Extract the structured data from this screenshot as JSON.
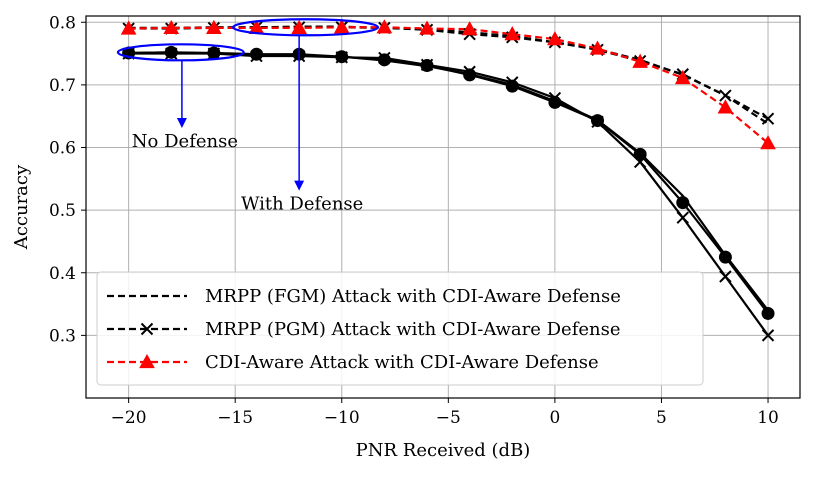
{
  "chart_data": {
    "type": "line",
    "title": "",
    "xlabel": "PNR Received (dB)",
    "ylabel": "Accuracy",
    "xlim": [
      -22,
      11.5
    ],
    "ylim": [
      0.2,
      0.81
    ],
    "xticks": [
      -20,
      -15,
      -10,
      -5,
      0,
      5,
      10
    ],
    "xtick_labels": [
      "−20",
      "−15",
      "−10",
      "−5",
      "0",
      "5",
      "10"
    ],
    "yticks": [
      0.3,
      0.4,
      0.5,
      0.6,
      0.7,
      0.8
    ],
    "ytick_labels": [
      "0.3",
      "0.4",
      "0.5",
      "0.6",
      "0.7",
      "0.8"
    ],
    "grid": true,
    "legend_position": "lower-left",
    "x": [
      -20,
      -18,
      -16,
      -14,
      -12,
      -10,
      -8,
      -6,
      -4,
      -2,
      0,
      2,
      4,
      6,
      8,
      10
    ],
    "series": [
      {
        "name": "MRPP (FGM) Attack with CDI-Aware Defense",
        "color": "#000000",
        "dashed": true,
        "marker": "none",
        "values": [
          0.791,
          0.791,
          0.792,
          0.792,
          0.793,
          0.793,
          0.791,
          0.789,
          0.784,
          0.778,
          0.768,
          0.757,
          0.74,
          0.716,
          0.683,
          0.638
        ]
      },
      {
        "name": "MRPP (PGM) Attack with CDI-Aware Defense",
        "color": "#000000",
        "dashed": true,
        "marker": "x",
        "values": [
          0.79,
          0.79,
          0.791,
          0.792,
          0.792,
          0.792,
          0.791,
          0.788,
          0.781,
          0.776,
          0.768,
          0.756,
          0.738,
          0.717,
          0.683,
          0.646
        ]
      },
      {
        "name": "CDI-Aware Attack with CDI-Aware Defense",
        "color": "#ff0000",
        "dashed": true,
        "marker": "triangle",
        "values": [
          0.79,
          0.791,
          0.791,
          0.791,
          0.791,
          0.792,
          0.792,
          0.79,
          0.789,
          0.781,
          0.773,
          0.758,
          0.737,
          0.711,
          0.664,
          0.607
        ]
      },
      {
        "name": "",
        "color": "#000000",
        "dashed": false,
        "marker": "circle",
        "values": [
          0.751,
          0.752,
          0.751,
          0.749,
          0.749,
          0.745,
          0.74,
          0.731,
          0.716,
          0.698,
          0.672,
          0.643,
          0.589,
          0.512,
          0.425,
          0.335
        ]
      },
      {
        "name": "",
        "color": "#000000",
        "dashed": false,
        "marker": "x",
        "values": [
          0.75,
          0.75,
          0.75,
          0.746,
          0.746,
          0.744,
          0.743,
          0.732,
          0.721,
          0.704,
          0.679,
          0.641,
          0.577,
          0.488,
          0.394,
          0.3
        ]
      },
      {
        "name": "",
        "color": "#000000",
        "dashed": false,
        "marker": "none",
        "values": [
          0.751,
          0.752,
          0.75,
          0.748,
          0.748,
          0.745,
          0.739,
          0.73,
          0.717,
          0.7,
          0.674,
          0.644,
          0.591,
          0.523,
          0.428,
          0.34
        ]
      }
    ],
    "annotations": [
      {
        "text": "No Defense",
        "x": -17.5,
        "y": 0.752,
        "ellipse_x_range": [
          -20.5,
          -14.6
        ],
        "label_y": 0.62,
        "arrow_color": "#0000ff"
      },
      {
        "text": "With Defense",
        "x": -12.0,
        "y": 0.792,
        "ellipse_x_range": [
          -15.1,
          -8.3
        ],
        "label_y": 0.52,
        "arrow_color": "#0000ff"
      }
    ]
  }
}
